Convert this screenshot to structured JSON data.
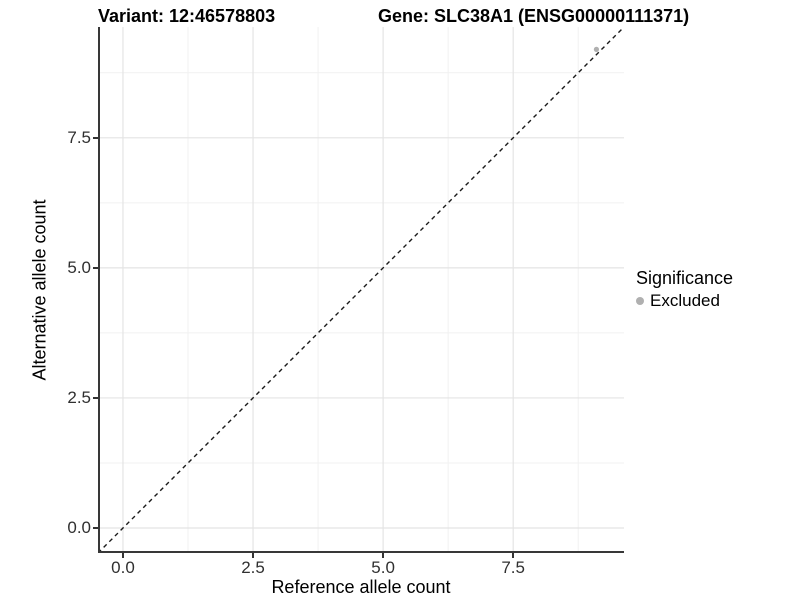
{
  "page": {
    "background": "#ffffff"
  },
  "chart_data": {
    "type": "scatter",
    "title_left": "Variant: 12:46578803",
    "title_right": "Gene: SLC38A1 (ENSG00000111371)",
    "xlabel": "Reference allele count",
    "ylabel": "Alternative allele count",
    "xlim": [
      -0.48,
      9.63
    ],
    "ylim": [
      -0.48,
      9.63
    ],
    "x_ticks": [
      0,
      2.5,
      5,
      7.5
    ],
    "x_tick_labels": [
      "0.0",
      "2.5",
      "5.0",
      "7.5"
    ],
    "y_ticks": [
      0,
      2.5,
      5,
      7.5
    ],
    "y_tick_labels": [
      "0.0",
      "2.5",
      "5.0",
      "7.5"
    ],
    "minor_gridlines": [
      1.25,
      3.75,
      6.25,
      8.75
    ],
    "grid": "major+minor",
    "reference_line": {
      "kind": "identity y=x",
      "from": [
        -0.48,
        -0.48
      ],
      "to": [
        9.63,
        9.63
      ],
      "style": "dashed",
      "color": "#1a1a1a"
    },
    "series": [
      {
        "name": "Excluded",
        "color": "#b0b0b0",
        "points": [
          [
            9.1,
            9.2
          ]
        ]
      }
    ],
    "legend": {
      "title": "Significance",
      "position": "right",
      "items": [
        {
          "label": "Excluded",
          "color": "#b0b0b0",
          "marker": "circle"
        }
      ]
    },
    "colors": {
      "grid_major": "#e4e4e4",
      "grid_minor": "#f1f1f1",
      "axis_line": "#383838",
      "tick": "#333333",
      "text": "#000000"
    }
  }
}
